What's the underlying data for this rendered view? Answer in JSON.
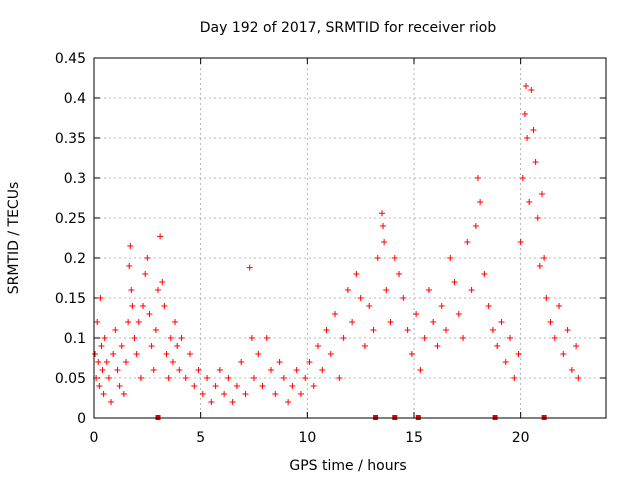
{
  "chart_data": {
    "type": "scatter",
    "title": "Day 192 of 2017, SRMTID for receiver riob",
    "xlabel": "GPS time / hours",
    "ylabel": "SRMTID / TECUs",
    "xlim": [
      0,
      24
    ],
    "ylim": [
      0,
      0.45
    ],
    "xticks": [
      0,
      5,
      10,
      15,
      20
    ],
    "yticks": [
      0,
      0.05,
      0.1,
      0.15,
      0.2,
      0.25,
      0.3,
      0.35,
      0.4,
      0.45
    ],
    "grid": true,
    "marker": "+",
    "color": "#ff0000",
    "series": [
      {
        "name": "SRMTID",
        "points": [
          [
            0.05,
            0.08
          ],
          [
            0.1,
            0.05
          ],
          [
            0.15,
            0.12
          ],
          [
            0.2,
            0.07
          ],
          [
            0.25,
            0.04
          ],
          [
            0.3,
            0.15
          ],
          [
            0.35,
            0.09
          ],
          [
            0.4,
            0.06
          ],
          [
            0.45,
            0.03
          ],
          [
            0.5,
            0.1
          ],
          [
            0.6,
            0.07
          ],
          [
            0.7,
            0.05
          ],
          [
            0.8,
            0.02
          ],
          [
            0.9,
            0.08
          ],
          [
            1.0,
            0.11
          ],
          [
            1.1,
            0.06
          ],
          [
            1.2,
            0.04
          ],
          [
            1.3,
            0.09
          ],
          [
            1.4,
            0.03
          ],
          [
            1.5,
            0.07
          ],
          [
            1.6,
            0.12
          ],
          [
            1.65,
            0.19
          ],
          [
            1.7,
            0.215
          ],
          [
            1.75,
            0.16
          ],
          [
            1.8,
            0.14
          ],
          [
            1.9,
            0.1
          ],
          [
            2.0,
            0.08
          ],
          [
            2.1,
            0.12
          ],
          [
            2.2,
            0.05
          ],
          [
            2.3,
            0.14
          ],
          [
            2.4,
            0.18
          ],
          [
            2.5,
            0.2
          ],
          [
            2.6,
            0.13
          ],
          [
            2.7,
            0.09
          ],
          [
            2.8,
            0.06
          ],
          [
            2.9,
            0.11
          ],
          [
            3.0,
            0.16
          ],
          [
            3.1,
            0.227
          ],
          [
            3.2,
            0.17
          ],
          [
            3.3,
            0.14
          ],
          [
            3.4,
            0.08
          ],
          [
            3.5,
            0.05
          ],
          [
            3.6,
            0.1
          ],
          [
            3.7,
            0.07
          ],
          [
            3.8,
            0.12
          ],
          [
            3.9,
            0.09
          ],
          [
            4.0,
            0.06
          ],
          [
            4.1,
            0.1
          ],
          [
            4.3,
            0.05
          ],
          [
            4.5,
            0.08
          ],
          [
            4.7,
            0.04
          ],
          [
            4.9,
            0.06
          ],
          [
            5.1,
            0.03
          ],
          [
            5.3,
            0.05
          ],
          [
            5.5,
            0.02
          ],
          [
            5.7,
            0.04
          ],
          [
            5.9,
            0.06
          ],
          [
            6.1,
            0.03
          ],
          [
            6.3,
            0.05
          ],
          [
            6.5,
            0.02
          ],
          [
            6.7,
            0.04
          ],
          [
            6.9,
            0.07
          ],
          [
            7.1,
            0.03
          ],
          [
            7.3,
            0.188
          ],
          [
            7.4,
            0.1
          ],
          [
            7.5,
            0.05
          ],
          [
            7.7,
            0.08
          ],
          [
            7.9,
            0.04
          ],
          [
            8.1,
            0.1
          ],
          [
            8.3,
            0.06
          ],
          [
            8.5,
            0.03
          ],
          [
            8.7,
            0.07
          ],
          [
            8.9,
            0.05
          ],
          [
            9.1,
            0.02
          ],
          [
            9.3,
            0.04
          ],
          [
            9.5,
            0.06
          ],
          [
            9.7,
            0.03
          ],
          [
            9.9,
            0.05
          ],
          [
            10.1,
            0.07
          ],
          [
            10.3,
            0.04
          ],
          [
            10.5,
            0.09
          ],
          [
            10.7,
            0.06
          ],
          [
            10.9,
            0.11
          ],
          [
            11.1,
            0.08
          ],
          [
            11.3,
            0.13
          ],
          [
            11.5,
            0.05
          ],
          [
            11.7,
            0.1
          ],
          [
            11.9,
            0.16
          ],
          [
            12.1,
            0.12
          ],
          [
            12.3,
            0.18
          ],
          [
            12.5,
            0.15
          ],
          [
            12.7,
            0.09
          ],
          [
            12.9,
            0.14
          ],
          [
            13.1,
            0.11
          ],
          [
            13.3,
            0.2
          ],
          [
            13.5,
            0.256
          ],
          [
            13.55,
            0.24
          ],
          [
            13.6,
            0.22
          ],
          [
            13.7,
            0.16
          ],
          [
            13.9,
            0.12
          ],
          [
            14.1,
            0.2
          ],
          [
            14.3,
            0.18
          ],
          [
            14.5,
            0.15
          ],
          [
            14.7,
            0.11
          ],
          [
            14.9,
            0.08
          ],
          [
            15.1,
            0.13
          ],
          [
            15.3,
            0.06
          ],
          [
            15.5,
            0.1
          ],
          [
            15.7,
            0.16
          ],
          [
            15.9,
            0.12
          ],
          [
            16.1,
            0.09
          ],
          [
            16.3,
            0.14
          ],
          [
            16.5,
            0.11
          ],
          [
            16.7,
            0.2
          ],
          [
            16.9,
            0.17
          ],
          [
            17.1,
            0.13
          ],
          [
            17.3,
            0.1
          ],
          [
            17.5,
            0.22
          ],
          [
            17.7,
            0.16
          ],
          [
            17.9,
            0.24
          ],
          [
            18.0,
            0.3
          ],
          [
            18.1,
            0.27
          ],
          [
            18.3,
            0.18
          ],
          [
            18.5,
            0.14
          ],
          [
            18.7,
            0.11
          ],
          [
            18.9,
            0.09
          ],
          [
            19.1,
            0.12
          ],
          [
            19.3,
            0.07
          ],
          [
            19.5,
            0.1
          ],
          [
            19.7,
            0.05
          ],
          [
            19.9,
            0.08
          ],
          [
            20.0,
            0.22
          ],
          [
            20.1,
            0.3
          ],
          [
            20.2,
            0.38
          ],
          [
            20.25,
            0.415
          ],
          [
            20.3,
            0.35
          ],
          [
            20.4,
            0.27
          ],
          [
            20.5,
            0.41
          ],
          [
            20.6,
            0.36
          ],
          [
            20.7,
            0.32
          ],
          [
            20.8,
            0.25
          ],
          [
            20.9,
            0.19
          ],
          [
            21.0,
            0.28
          ],
          [
            21.1,
            0.2
          ],
          [
            21.2,
            0.15
          ],
          [
            21.4,
            0.12
          ],
          [
            21.6,
            0.1
          ],
          [
            21.8,
            0.14
          ],
          [
            22.0,
            0.08
          ],
          [
            22.2,
            0.11
          ],
          [
            22.4,
            0.06
          ],
          [
            22.6,
            0.09
          ],
          [
            22.7,
            0.05
          ]
        ]
      }
    ],
    "bottom_markers_x": [
      3.0,
      13.2,
      14.1,
      15.2,
      18.8,
      21.1
    ]
  }
}
